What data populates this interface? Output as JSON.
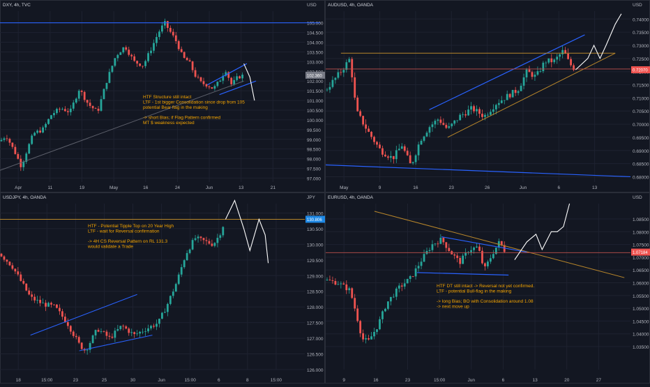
{
  "colors": {
    "bg": "#131722",
    "grid": "#1e2230",
    "axis_text": "#b2b5be",
    "up": "#26a69a",
    "down": "#ef5350",
    "blue": "#2962ff",
    "orange": "#b8862a",
    "annot": "#f7a600",
    "white": "#ffffff",
    "ma": "#5d606b"
  },
  "chart_data": [
    {
      "id": "dxy",
      "type": "candlestick",
      "title": "DXY, 4h, TVC",
      "y_unit": "USD",
      "ylim": [
        96.8,
        105.6
      ],
      "y_ticks": [
        "105.000",
        "104.500",
        "104.000",
        "103.500",
        "103.000",
        "102.500",
        "102.000",
        "101.500",
        "101.000",
        "100.500",
        "100.000",
        "99.500",
        "99.000",
        "98.500",
        "98.000",
        "97.500",
        "97.000"
      ],
      "x_ticks": [
        "Apr",
        "11",
        "19",
        "May",
        "16",
        "24",
        "Jun",
        "13",
        "21"
      ],
      "price_tag": "102.360",
      "annotation": [
        "HTF Structure still intact",
        "LTF - 1st bigger Consolidation since drop from 105",
        "potential Bear flag in the making",
        "",
        "-> short Bias; if Flag Pattern confirmed",
        "MT $ weakness expected"
      ]
    },
    {
      "id": "audusd",
      "type": "candlestick",
      "title": "AUDUSD, 4h, OANDA",
      "y_unit": "USD",
      "ylim": [
        0.678,
        0.743
      ],
      "y_ticks": [
        "0.74000",
        "0.73500",
        "0.73000",
        "0.72500",
        "0.72000",
        "0.71500",
        "0.71000",
        "0.70500",
        "0.70000",
        "0.69500",
        "0.69000",
        "0.68500",
        "0.68000"
      ],
      "x_ticks": [
        "May",
        "9",
        "16",
        "23",
        "26",
        "Jun",
        "6",
        "13"
      ],
      "price_tag": "0.72070",
      "annotation": []
    },
    {
      "id": "usdjpy",
      "type": "candlestick",
      "title": "USDJPY, 4h, OANDA",
      "y_unit": "JPY",
      "ylim": [
        126.0,
        131.3
      ],
      "y_ticks": [
        "131.000",
        "130.500",
        "130.000",
        "129.500",
        "129.000",
        "128.500",
        "128.000",
        "127.500",
        "127.000",
        "126.500",
        "126.000"
      ],
      "x_ticks": [
        "18",
        "15:00",
        "23",
        "25",
        "30",
        "Jun",
        "15:00",
        "6",
        "8",
        "15:00"
      ],
      "price_tag": "130.806",
      "annotation": [
        "HTF - Potential Tipple Top on 20 Year High",
        "LTF - wait for Reversal confirmation",
        "",
        "-> 4H CS Reversal Pattern on RL 131.3",
        "would validate a Trade"
      ]
    },
    {
      "id": "eurusd",
      "type": "candlestick",
      "title": "EURUSD, 4h, OANDA",
      "y_unit": "USD",
      "ylim": [
        1.026,
        1.091
      ],
      "y_ticks": [
        "1.08500",
        "1.08000",
        "1.07500",
        "1.07000",
        "1.06500",
        "1.06000",
        "1.05500",
        "1.05000",
        "1.04500",
        "1.04000",
        "1.03500"
      ],
      "x_ticks": [
        "9",
        "16",
        "23",
        "15:00",
        "Jun",
        "6",
        "13",
        "20",
        "27"
      ],
      "price_tag": "1.07184",
      "annotation": [
        "HTF DT still intact -> Reversal not yet confirmed.",
        "LTF - potential Bull-flag in the making",
        "",
        "-> long Bias; BO with Consolidation around 1.08",
        "-> next move up"
      ]
    }
  ]
}
